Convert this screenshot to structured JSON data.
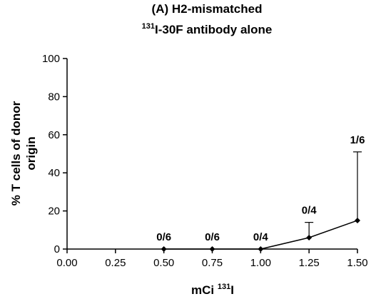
{
  "chart_data": {
    "type": "line",
    "title_line1": "(A) H2-mismatched",
    "title_line2_sup": "131",
    "title_line2": "I-30F antibody alone",
    "xlabel_prefix": "mCi ",
    "xlabel_sup": "131",
    "xlabel_suffix": "I",
    "ylabel_line1": "% T cells of donor",
    "ylabel_line2": "origin",
    "xlim": [
      0.0,
      1.5
    ],
    "ylim": [
      0,
      100
    ],
    "x_ticks": [
      "0.00",
      "0.25",
      "0.50",
      "0.75",
      "1.00",
      "1.25",
      "1.50"
    ],
    "y_ticks": [
      "0",
      "20",
      "40",
      "60",
      "80",
      "100"
    ],
    "grid": false,
    "series": [
      {
        "x": [
          0.5,
          0.75,
          1.0,
          1.25,
          1.5
        ],
        "y": [
          0,
          0,
          0,
          6,
          15
        ],
        "error_upper": [
          0,
          0,
          0,
          14,
          51
        ],
        "labels": [
          "0/6",
          "0/6",
          "0/4",
          "0/4",
          "1/6"
        ]
      }
    ]
  }
}
